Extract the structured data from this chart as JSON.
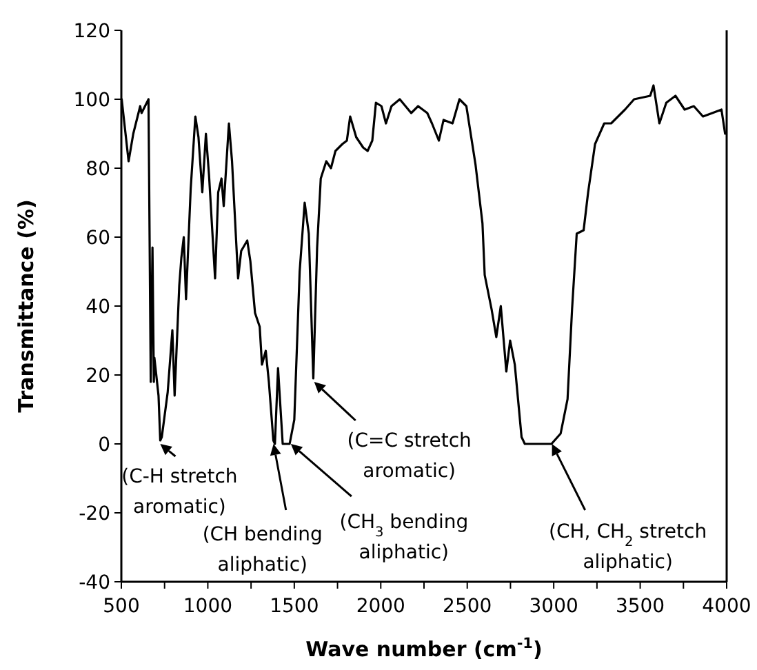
{
  "chart_data": {
    "type": "line",
    "xlabel": "Wave number (cm$^{-1}$)",
    "ylabel": "Transmittance (%)",
    "xlim": [
      500,
      4000
    ],
    "ylim": [
      -40,
      120
    ],
    "xticks": [
      500,
      {
        "value": 750,
        "label": null
      },
      1000,
      {
        "value": 1250,
        "label": null
      },
      1500,
      {
        "value": 1750,
        "label": null
      },
      2000,
      {
        "value": 2250,
        "label": null
      },
      2500,
      {
        "value": 2750,
        "label": null
      },
      3000,
      {
        "value": 3250,
        "label": null
      },
      3500,
      {
        "value": 3750,
        "label": null
      },
      4000
    ],
    "yticks": [
      -40,
      -20,
      0,
      20,
      40,
      60,
      80,
      100,
      120
    ],
    "series": [
      {
        "color": "#000000",
        "x": [
          502,
          542,
          569,
          609,
          617,
          657,
          670,
          680,
          688,
          691,
          715,
          725,
          734,
          768,
          795,
          808,
          835,
          847,
          861,
          874,
          901,
          928,
          946,
          968,
          989,
          1007,
          1042,
          1060,
          1079,
          1092,
          1122,
          1140,
          1175,
          1193,
          1228,
          1246,
          1273,
          1300,
          1313,
          1335,
          1353,
          1379,
          1388,
          1406,
          1433,
          1473,
          1500,
          1531,
          1560,
          1584,
          1610,
          1632,
          1653,
          1685,
          1712,
          1738,
          1778,
          1804,
          1823,
          1858,
          1898,
          1924,
          1951,
          1972,
          2004,
          2030,
          2062,
          2110,
          2176,
          2216,
          2269,
          2296,
          2336,
          2363,
          2415,
          2455,
          2495,
          2548,
          2588,
          2601,
          2641,
          2668,
          2694,
          2726,
          2748,
          2775,
          2814,
          2833,
          2987,
          3040,
          3080,
          3106,
          3133,
          3173,
          3199,
          3239,
          3292,
          3332,
          3412,
          3465,
          3558,
          3577,
          3611,
          3651,
          3704,
          3757,
          3810,
          3863,
          3917,
          3970,
          3991
        ],
        "values": [
          100,
          82,
          90,
          98,
          96,
          100,
          18,
          57,
          18,
          25,
          14,
          1,
          2,
          15,
          33,
          14,
          46,
          54,
          60,
          42,
          74,
          95,
          89,
          73,
          90,
          78,
          48,
          73,
          77,
          69,
          93,
          82,
          48,
          56,
          59,
          53,
          38,
          34,
          23,
          27,
          18,
          1,
          0,
          22,
          0,
          0,
          7,
          50,
          70,
          61,
          19,
          57,
          77,
          82,
          80,
          85,
          87,
          88,
          95,
          89,
          86,
          85,
          88,
          99,
          98,
          93,
          98,
          100,
          96,
          98,
          96,
          93,
          88,
          94,
          93,
          100,
          98,
          81,
          64,
          49,
          39,
          31,
          40,
          21,
          30,
          23,
          2,
          0,
          0,
          3,
          13,
          39,
          61,
          62,
          73,
          87,
          93,
          93,
          97,
          100,
          101,
          104,
          93,
          99,
          101,
          97,
          98,
          95,
          96,
          97,
          90
        ]
      }
    ],
    "annotations": [
      {
        "text": "(C-H stretch\naromatic)",
        "x": 725,
        "y": 0
      },
      {
        "text": "(CH bending\naliphatic)",
        "x": 1380,
        "y": 0
      },
      {
        "text": "(CH$_{3}$ bending\naliphatic)",
        "x": 1480,
        "y": 0
      },
      {
        "text": "(C=C stretch\naromatic)",
        "x": 1615,
        "y": 18
      },
      {
        "text": "(CH, CH$_{2}$ stretch\naliphatic)",
        "x": 2990,
        "y": 0
      }
    ]
  }
}
